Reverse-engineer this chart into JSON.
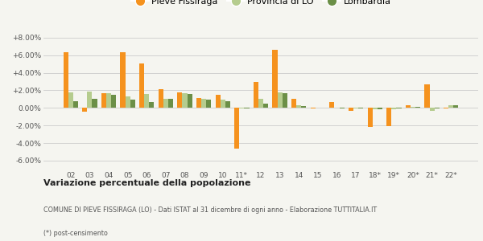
{
  "years": [
    "02",
    "03",
    "04",
    "05",
    "06",
    "07",
    "08",
    "09",
    "10",
    "11*",
    "12",
    "13",
    "14",
    "15",
    "16",
    "17",
    "18*",
    "19*",
    "20*",
    "21*",
    "22*"
  ],
  "pieve": [
    6.3,
    -0.4,
    1.7,
    6.3,
    5.1,
    2.1,
    1.8,
    1.1,
    1.5,
    -4.6,
    3.0,
    6.6,
    1.0,
    -0.1,
    0.7,
    -0.3,
    -2.2,
    -2.1,
    0.3,
    2.7,
    -0.1
  ],
  "provincia": [
    1.8,
    1.9,
    1.7,
    1.3,
    1.6,
    1.0,
    1.7,
    1.0,
    0.9,
    -0.1,
    1.0,
    1.8,
    0.3,
    0.0,
    0.0,
    -0.1,
    -0.2,
    -0.2,
    0.1,
    -0.3,
    0.3
  ],
  "lombardia": [
    0.8,
    1.0,
    1.5,
    0.9,
    0.7,
    1.0,
    1.6,
    0.9,
    0.8,
    -0.1,
    0.5,
    1.7,
    0.2,
    0.0,
    -0.1,
    -0.1,
    -0.2,
    -0.1,
    0.1,
    -0.1,
    0.3
  ],
  "color_pieve": "#f5921e",
  "color_provincia": "#b5cc8e",
  "color_lombardia": "#6b8f47",
  "bg_color": "#f5f5f0",
  "ylim": [
    -7.0,
    9.0
  ],
  "yticks": [
    -6.0,
    -4.0,
    -2.0,
    0.0,
    2.0,
    4.0,
    6.0,
    8.0
  ],
  "ytick_labels": [
    "-6.00%",
    "-4.00%",
    "-2.00%",
    "0.00%",
    "+2.00%",
    "+4.00%",
    "+6.00%",
    "+8.00%"
  ],
  "title_bold": "Variazione percentuale della popolazione",
  "subtitle1": "COMUNE DI PIEVE FISSIRAGA (LO) - Dati ISTAT al 31 dicembre di ogni anno - Elaborazione TUTTITALIA.IT",
  "subtitle2": "(*) post-censimento",
  "legend_labels": [
    "Pieve Fissiraga",
    "Provincia di LO",
    "Lombardia"
  ]
}
